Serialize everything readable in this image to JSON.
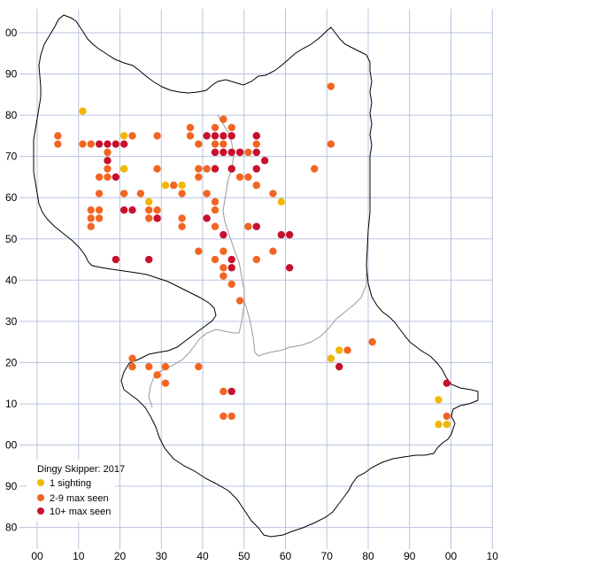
{
  "map": {
    "grid": {
      "x_min": 0,
      "x_max": 110,
      "x_step": 10,
      "y_min": -20,
      "y_max": 100,
      "y_step": 10,
      "x_labels": [
        "00",
        "10",
        "20",
        "30",
        "40",
        "50",
        "60",
        "70",
        "80",
        "90",
        "00",
        "10"
      ],
      "y_labels_top_to_bottom": [
        "00",
        "90",
        "80",
        "70",
        "60",
        "50",
        "40",
        "30",
        "20",
        "10",
        "00",
        "90",
        "80"
      ]
    },
    "colors": {
      "grid": "#b9c3dd",
      "boundary": "#000000",
      "inner_boundary": "#9a9a9a",
      "one_sighting": "#f2b705",
      "two_to_nine": "#f26522",
      "ten_plus": "#c8102e"
    },
    "legend": {
      "title": "Dingy Skipper:  2017",
      "items": [
        {
          "key": "one",
          "label": "1 sighting"
        },
        {
          "key": "mid",
          "label": "2-9 max seen"
        },
        {
          "key": "high",
          "label": "10+ max seen"
        }
      ]
    },
    "records": {
      "one": [
        [
          11,
          81
        ],
        [
          21,
          75
        ],
        [
          21,
          67
        ],
        [
          27,
          59
        ],
        [
          31,
          63
        ],
        [
          35,
          63
        ],
        [
          59,
          59
        ],
        [
          47,
          67
        ],
        [
          71,
          21
        ],
        [
          73,
          23
        ],
        [
          97,
          11
        ],
        [
          97,
          5
        ],
        [
          99,
          5
        ]
      ],
      "mid": [
        [
          5,
          75
        ],
        [
          5,
          73
        ],
        [
          11,
          73
        ],
        [
          13,
          73
        ],
        [
          17,
          71
        ],
        [
          17,
          67
        ],
        [
          15,
          65
        ],
        [
          17,
          65
        ],
        [
          15,
          61
        ],
        [
          13,
          57
        ],
        [
          15,
          57
        ],
        [
          13,
          55
        ],
        [
          15,
          55
        ],
        [
          13,
          53
        ],
        [
          21,
          61
        ],
        [
          23,
          75
        ],
        [
          25,
          61
        ],
        [
          29,
          75
        ],
        [
          29,
          67
        ],
        [
          27,
          57
        ],
        [
          29,
          57
        ],
        [
          27,
          55
        ],
        [
          29,
          55
        ],
        [
          33,
          63
        ],
        [
          35,
          61
        ],
        [
          35,
          55
        ],
        [
          35,
          53
        ],
        [
          37,
          77
        ],
        [
          37,
          75
        ],
        [
          39,
          73
        ],
        [
          41,
          67
        ],
        [
          39,
          67
        ],
        [
          39,
          65
        ],
        [
          43,
          77
        ],
        [
          45,
          79
        ],
        [
          47,
          77
        ],
        [
          43,
          73
        ],
        [
          45,
          73
        ],
        [
          49,
          71
        ],
        [
          51,
          71
        ],
        [
          53,
          73
        ],
        [
          53,
          75
        ],
        [
          49,
          65
        ],
        [
          51,
          65
        ],
        [
          53,
          63
        ],
        [
          43,
          59
        ],
        [
          43,
          57
        ],
        [
          43,
          53
        ],
        [
          41,
          61
        ],
        [
          51,
          53
        ],
        [
          57,
          61
        ],
        [
          57,
          47
        ],
        [
          39,
          47
        ],
        [
          43,
          45
        ],
        [
          45,
          47
        ],
        [
          45,
          43
        ],
        [
          45,
          41
        ],
        [
          47,
          39
        ],
        [
          49,
          35
        ],
        [
          53,
          45
        ],
        [
          67,
          67
        ],
        [
          71,
          87
        ],
        [
          71,
          73
        ],
        [
          75,
          23
        ],
        [
          81,
          25
        ],
        [
          23,
          21
        ],
        [
          23,
          19
        ],
        [
          27,
          19
        ],
        [
          29,
          17
        ],
        [
          31,
          19
        ],
        [
          31,
          15
        ],
        [
          39,
          19
        ],
        [
          45,
          13
        ],
        [
          45,
          7
        ],
        [
          47,
          7
        ],
        [
          99,
          7
        ]
      ],
      "high": [
        [
          15,
          73
        ],
        [
          17,
          73
        ],
        [
          19,
          73
        ],
        [
          21,
          73
        ],
        [
          17,
          69
        ],
        [
          19,
          65
        ],
        [
          21,
          57
        ],
        [
          23,
          57
        ],
        [
          29,
          55
        ],
        [
          19,
          45
        ],
        [
          27,
          45
        ],
        [
          41,
          75
        ],
        [
          43,
          75
        ],
        [
          45,
          75
        ],
        [
          47,
          75
        ],
        [
          53,
          75
        ],
        [
          43,
          71
        ],
        [
          45,
          71
        ],
        [
          47,
          71
        ],
        [
          49,
          71
        ],
        [
          53,
          71
        ],
        [
          43,
          67
        ],
        [
          47,
          67
        ],
        [
          53,
          67
        ],
        [
          55,
          69
        ],
        [
          41,
          55
        ],
        [
          45,
          51
        ],
        [
          53,
          53
        ],
        [
          59,
          51
        ],
        [
          61,
          51
        ],
        [
          61,
          43
        ],
        [
          47,
          45
        ],
        [
          47,
          43
        ],
        [
          47,
          13
        ],
        [
          73,
          19
        ],
        [
          99,
          15
        ]
      ]
    }
  }
}
